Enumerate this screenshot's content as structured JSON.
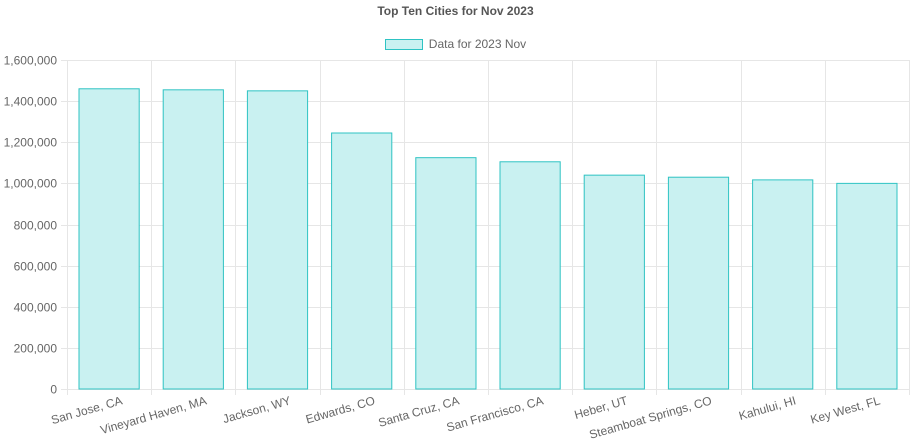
{
  "colors": {
    "bar_fill": "#c9f1f1",
    "bar_stroke": "#2ec3c3",
    "grid": "#e6e6e6"
  },
  "chart_data": {
    "type": "bar",
    "title": "Top Ten Cities for Nov 2023",
    "legend": {
      "position": "top"
    },
    "grid": true,
    "categories": [
      "San Jose, CA",
      "Vineyard Haven, MA",
      "Jackson, WY",
      "Edwards, CO",
      "Santa Cruz, CA",
      "San Francisco, CA",
      "Heber, UT",
      "Steamboat Springs, CO",
      "Kahului, HI",
      "Key West, FL"
    ],
    "series": [
      {
        "name": "Data for 2023 Nov",
        "values": [
          1460000,
          1455000,
          1450000,
          1245000,
          1125000,
          1105000,
          1040000,
          1030000,
          1017000,
          1000000
        ]
      }
    ],
    "ylim": [
      0,
      1600000
    ],
    "yticks": [
      0,
      200000,
      400000,
      600000,
      800000,
      1000000,
      1200000,
      1400000,
      1600000
    ],
    "ytick_labels": [
      "0",
      "200,000",
      "400,000",
      "600,000",
      "800,000",
      "1,000,000",
      "1,200,000",
      "1,400,000",
      "1,600,000"
    ]
  }
}
